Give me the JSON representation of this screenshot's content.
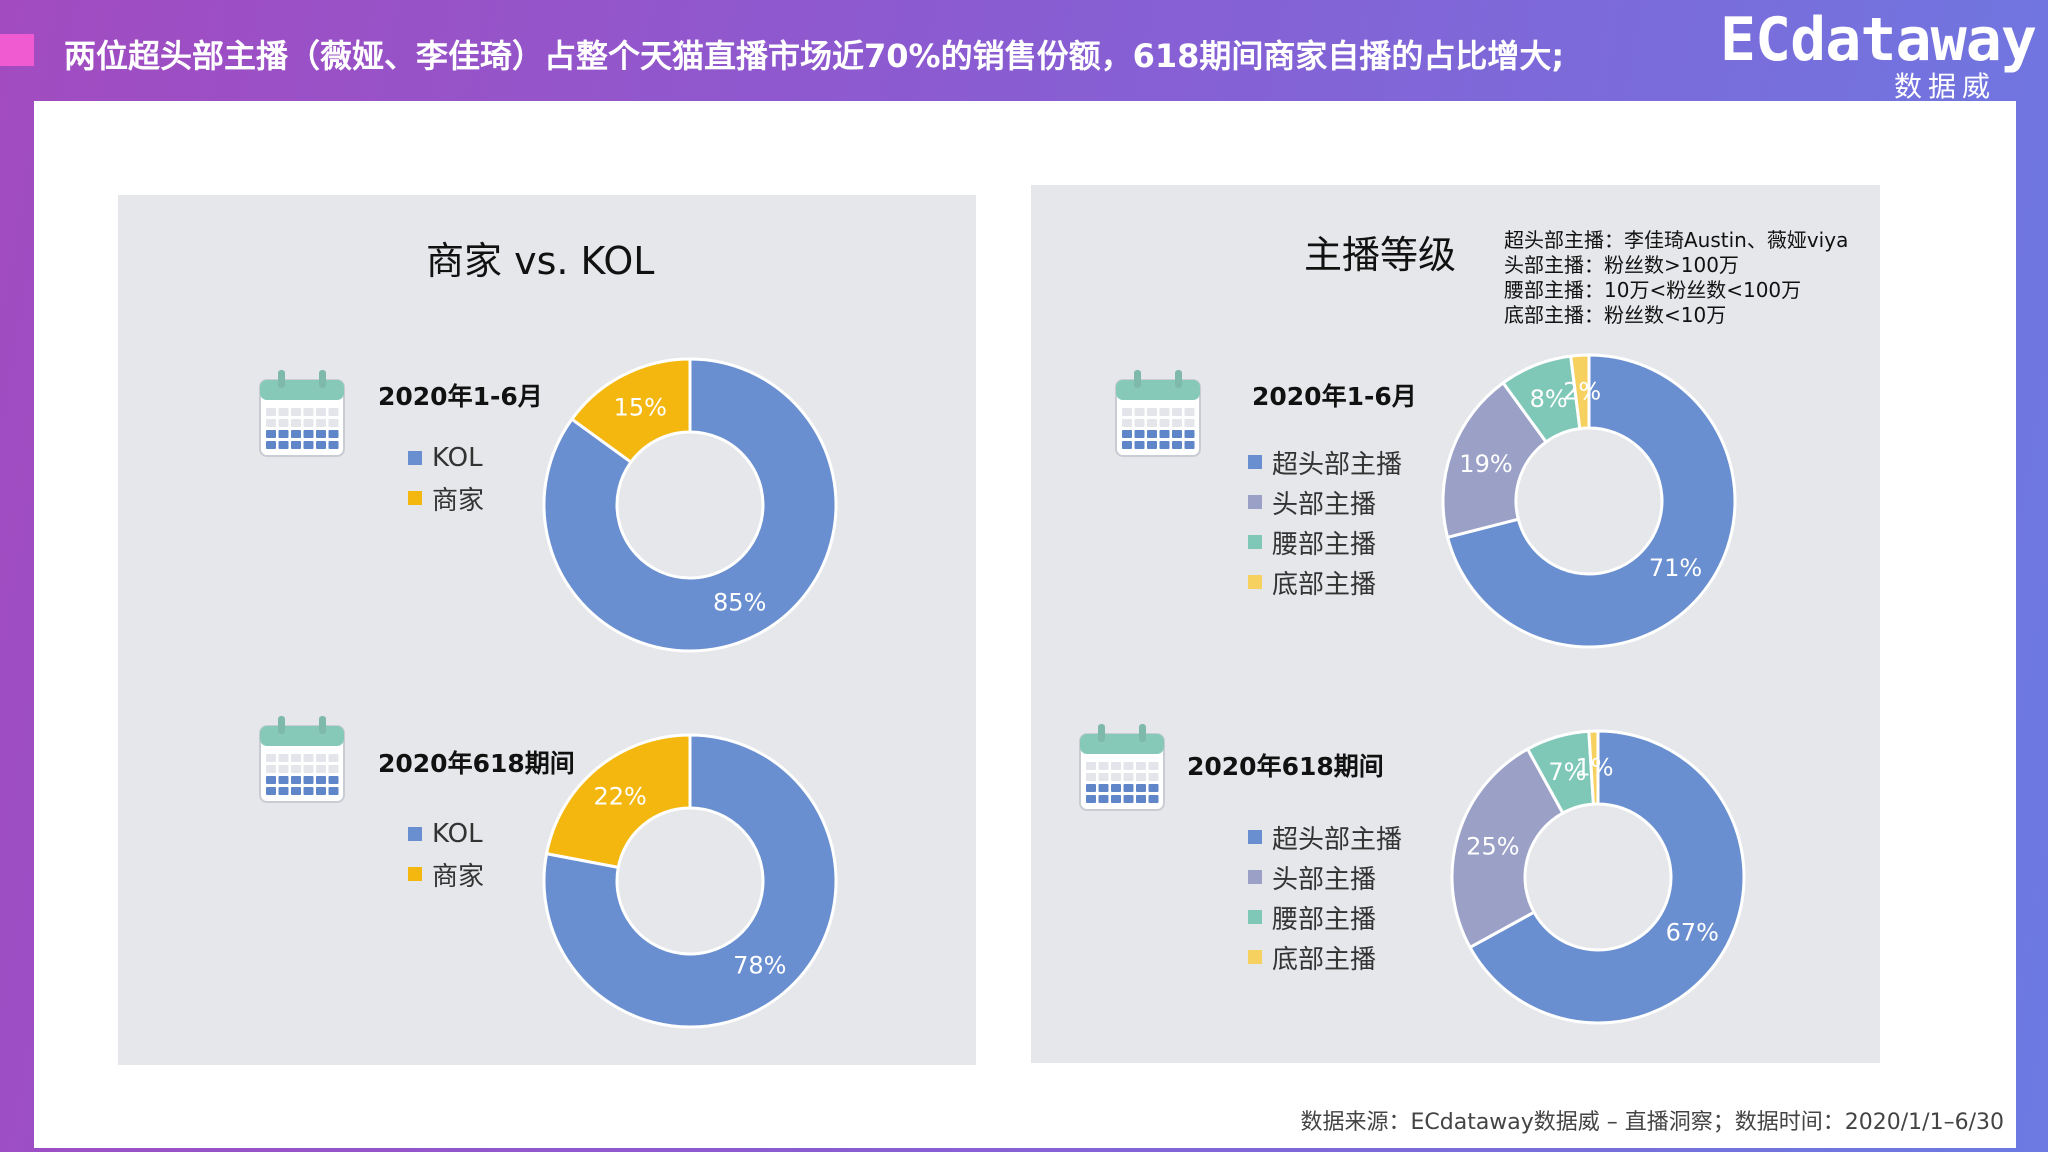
{
  "header": {
    "headline": "两位超头部主播（薇娅、李佳琦）占整个天猫直播市场近70%的销售份额，618期间商家自播的占比增大;",
    "logo_main": "ECdataway",
    "logo_sub": "数据威"
  },
  "colors": {
    "kol": "#6a8fd0",
    "merchant": "#f3b70f",
    "super_head": "#6a8fd0",
    "head": "#9aa0c6",
    "waist": "#7fc8b8",
    "bottom": "#f6d160"
  },
  "left_panel": {
    "title": "商家 vs. KOL",
    "legend": [
      "KOL",
      "商家"
    ]
  },
  "right_panel": {
    "title": "主播等级",
    "legend": [
      "超头部主播",
      "头部主播",
      "腰部主播",
      "底部主播"
    ],
    "notes": [
      "超头部主播：李佳琦Austin、薇娅viya",
      "头部主播：粉丝数>100万",
      "腰部主播：10万<粉丝数<100万",
      "底部主播：粉丝数<10万"
    ]
  },
  "chart_data": [
    {
      "type": "pie",
      "title": "商家 vs. KOL",
      "subtitle": "2020年1-6月",
      "categories": [
        "KOL",
        "商家"
      ],
      "values": [
        85,
        15
      ],
      "labels": [
        "85%",
        "15%"
      ],
      "colors": [
        "#6a8fd0",
        "#f3b70f"
      ],
      "hole": 0.5,
      "legend": "left"
    },
    {
      "type": "pie",
      "title": "商家 vs. KOL",
      "subtitle": "2020年618期间",
      "categories": [
        "KOL",
        "商家"
      ],
      "values": [
        78,
        22
      ],
      "labels": [
        "78%",
        "22%"
      ],
      "colors": [
        "#6a8fd0",
        "#f3b70f"
      ],
      "hole": 0.5,
      "legend": "left"
    },
    {
      "type": "pie",
      "title": "主播等级",
      "subtitle": "2020年1-6月",
      "categories": [
        "超头部主播",
        "头部主播",
        "腰部主播",
        "底部主播"
      ],
      "values": [
        71,
        19,
        8,
        2
      ],
      "labels": [
        "71%",
        "19%",
        "8%",
        "2%"
      ],
      "colors": [
        "#6a8fd0",
        "#9aa0c6",
        "#7fc8b8",
        "#f6d160"
      ],
      "hole": 0.5,
      "legend": "left"
    },
    {
      "type": "pie",
      "title": "主播等级",
      "subtitle": "2020年618期间",
      "categories": [
        "超头部主播",
        "头部主播",
        "腰部主播",
        "底部主播"
      ],
      "values": [
        67,
        25,
        7,
        1
      ],
      "labels": [
        "67%",
        "25%",
        "7%",
        "1%"
      ],
      "colors": [
        "#6a8fd0",
        "#9aa0c6",
        "#7fc8b8",
        "#f6d160"
      ],
      "hole": 0.5,
      "legend": "left"
    }
  ],
  "footer": {
    "source": "数据来源：ECdataway数据威 – 直播洞察；数据时间：2020/1/1–6/30"
  }
}
